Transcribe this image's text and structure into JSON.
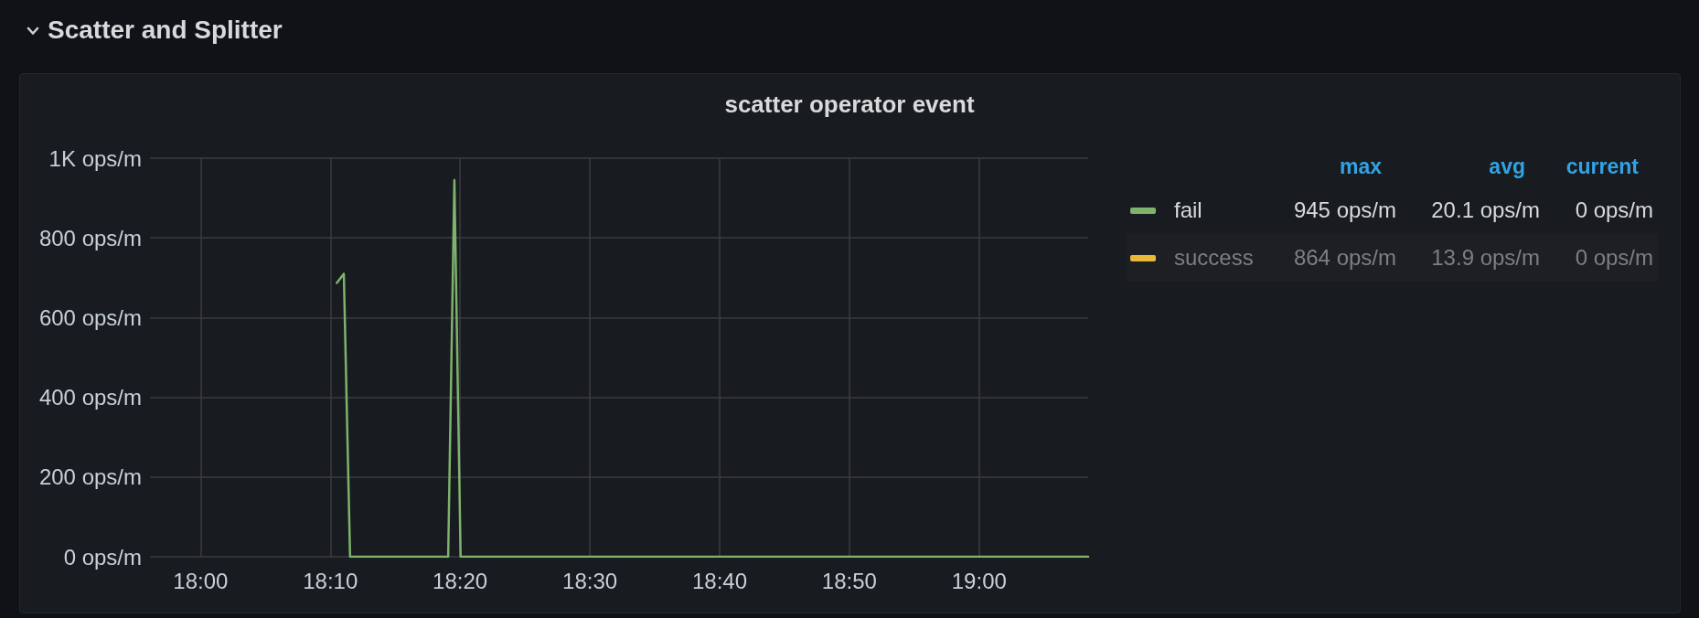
{
  "chart_data": {
    "type": "line",
    "title": "scatter operator event",
    "subtitle": "Scatter and Splitter",
    "x": [
      18.175,
      18.184,
      18.192,
      18.318,
      18.326,
      18.334,
      19.14
    ],
    "series": [
      {
        "name": "fail",
        "color": "#7eb26d",
        "values": [
          687,
          710,
          0,
          0,
          945,
          0,
          0
        ]
      },
      {
        "name": "success",
        "color": "#eab839",
        "values": [
          null,
          null,
          null,
          null,
          null,
          null,
          null
        ]
      }
    ],
    "xlim": [
      17.935,
      19.14
    ],
    "xticks": [
      {
        "value": 18,
        "label": "18:00"
      },
      {
        "value": 18.1667,
        "label": "18:10"
      },
      {
        "value": 18.3333,
        "label": "18:20"
      },
      {
        "value": 18.5,
        "label": "18:30"
      },
      {
        "value": 18.6667,
        "label": "18:40"
      },
      {
        "value": 18.8333,
        "label": "18:50"
      },
      {
        "value": 19,
        "label": "19:00"
      }
    ],
    "ylim": [
      0,
      1000
    ],
    "yticks": [
      {
        "value": 0,
        "label": "0 ops/m"
      },
      {
        "value": 200,
        "label": "200 ops/m"
      },
      {
        "value": 400,
        "label": "400 ops/m"
      },
      {
        "value": 600,
        "label": "600 ops/m"
      },
      {
        "value": 800,
        "label": "800 ops/m"
      },
      {
        "value": 1000,
        "label": "1K ops/m"
      }
    ],
    "grid": true,
    "legend": "right",
    "marker": "none",
    "annotations": [
      "max",
      "avg",
      "current",
      "945 ops/m",
      "20.1 ops/m",
      "0 ops/m",
      "864 ops/m",
      "13.9 ops/m",
      "0 ops/m"
    ]
  }
}
